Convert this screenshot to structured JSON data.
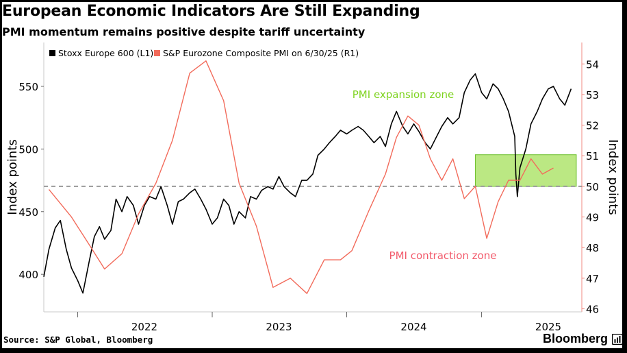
{
  "header": {
    "title": "European Economic Indicators Are Still Expanding",
    "subtitle": "PMI momentum remains positive despite tariff uncertainty"
  },
  "footer": {
    "source": "Source: S&P Global, Bloomberg",
    "brand": "Bloomberg"
  },
  "icons": {
    "brand": "chart-square-icon"
  },
  "chart_data": {
    "type": "line",
    "title": "European Economic Indicators Are Still Expanding",
    "subtitle": "PMI momentum remains positive despite tariff uncertainty",
    "x_tick_labels": [
      "2022",
      "2023",
      "2024",
      "2025"
    ],
    "x_range": [
      "2021-10-01",
      "2025-09-30"
    ],
    "y_left": {
      "label": "Index points",
      "range": [
        370,
        585
      ],
      "ticks": [
        400,
        450,
        500,
        550
      ]
    },
    "y_right": {
      "label": "Index points",
      "range": [
        45.9,
        54.7
      ],
      "ticks": [
        46,
        47,
        48,
        49,
        50,
        51,
        52,
        53,
        54
      ]
    },
    "legend": {
      "position": "top-left"
    },
    "series": [
      {
        "name": "Stoxx Europe 600 (L1)",
        "axis": "left",
        "color": "#000000",
        "x": [
          "2021-10-01",
          "2021-10-15",
          "2021-11-01",
          "2021-11-15",
          "2021-12-01",
          "2021-12-15",
          "2022-01-01",
          "2022-01-15",
          "2022-02-01",
          "2022-02-15",
          "2022-03-01",
          "2022-03-15",
          "2022-04-01",
          "2022-04-15",
          "2022-05-01",
          "2022-05-15",
          "2022-06-01",
          "2022-06-15",
          "2022-07-01",
          "2022-07-15",
          "2022-08-01",
          "2022-08-15",
          "2022-09-01",
          "2022-09-15",
          "2022-10-01",
          "2022-10-15",
          "2022-11-01",
          "2022-11-15",
          "2022-12-01",
          "2022-12-15",
          "2023-01-01",
          "2023-01-15",
          "2023-02-01",
          "2023-02-15",
          "2023-03-01",
          "2023-03-15",
          "2023-04-01",
          "2023-04-15",
          "2023-05-01",
          "2023-05-15",
          "2023-06-01",
          "2023-06-15",
          "2023-07-01",
          "2023-07-15",
          "2023-08-01",
          "2023-08-15",
          "2023-09-01",
          "2023-09-15",
          "2023-10-01",
          "2023-10-15",
          "2023-11-01",
          "2023-11-15",
          "2023-12-01",
          "2023-12-15",
          "2024-01-01",
          "2024-01-15",
          "2024-02-01",
          "2024-02-15",
          "2024-03-01",
          "2024-03-15",
          "2024-04-01",
          "2024-04-15",
          "2024-05-01",
          "2024-05-15",
          "2024-06-01",
          "2024-06-15",
          "2024-07-01",
          "2024-07-15",
          "2024-08-01",
          "2024-08-15",
          "2024-09-01",
          "2024-09-15",
          "2024-10-01",
          "2024-10-15",
          "2024-11-01",
          "2024-11-15",
          "2024-12-01",
          "2024-12-15",
          "2025-01-01",
          "2025-01-15",
          "2025-02-01",
          "2025-02-15",
          "2025-03-01",
          "2025-03-15",
          "2025-04-01",
          "2025-04-04",
          "2025-04-08",
          "2025-04-15",
          "2025-05-01",
          "2025-05-15",
          "2025-06-01",
          "2025-06-15",
          "2025-07-01",
          "2025-07-15",
          "2025-08-01",
          "2025-08-15",
          "2025-09-01"
        ],
        "values": [
          398,
          420,
          437,
          443,
          420,
          405,
          395,
          385,
          410,
          430,
          438,
          428,
          435,
          460,
          450,
          462,
          455,
          440,
          455,
          462,
          460,
          470,
          455,
          440,
          458,
          460,
          465,
          468,
          460,
          452,
          440,
          445,
          460,
          455,
          440,
          450,
          445,
          462,
          460,
          467,
          470,
          468,
          478,
          470,
          465,
          462,
          475,
          475,
          480,
          495,
          500,
          505,
          510,
          515,
          512,
          515,
          518,
          515,
          510,
          505,
          510,
          502,
          520,
          530,
          518,
          512,
          520,
          514,
          505,
          500,
          510,
          518,
          525,
          520,
          525,
          545,
          555,
          560,
          545,
          540,
          552,
          548,
          540,
          530,
          510,
          480,
          462,
          485,
          500,
          520,
          530,
          540,
          548,
          550,
          540,
          535,
          548
        ]
      },
      {
        "name": "S&P Eurozone Composite PMI on 6/30/25 (R1)",
        "axis": "right",
        "color": "#f26b5b",
        "x": [
          "2021-10-15",
          "2021-12-15",
          "2022-02-01",
          "2022-03-15",
          "2022-05-01",
          "2022-06-15",
          "2022-08-01",
          "2022-09-15",
          "2022-11-01",
          "2022-12-15",
          "2023-02-01",
          "2023-03-15",
          "2023-05-01",
          "2023-06-15",
          "2023-08-01",
          "2023-09-15",
          "2023-11-01",
          "2023-12-15",
          "2024-01-15",
          "2024-03-01",
          "2024-04-15",
          "2024-05-15",
          "2024-06-15",
          "2024-07-15",
          "2024-08-15",
          "2024-09-15",
          "2024-10-15",
          "2024-11-15",
          "2024-12-15",
          "2025-01-15",
          "2025-02-15",
          "2025-03-15",
          "2025-04-15",
          "2025-05-15",
          "2025-06-15",
          "2025-07-15"
        ],
        "values": [
          49.9,
          49.0,
          48.1,
          47.3,
          47.8,
          49.1,
          50.1,
          51.5,
          53.7,
          54.1,
          52.8,
          50.1,
          48.7,
          46.7,
          47.0,
          46.5,
          47.6,
          47.6,
          47.9,
          49.2,
          50.4,
          51.6,
          52.3,
          52.0,
          50.9,
          50.2,
          50.9,
          49.6,
          50.0,
          48.3,
          49.5,
          50.2,
          50.2,
          50.9,
          50.4,
          50.6
        ]
      }
    ],
    "reference_line": {
      "axis": "right",
      "value": 50.0,
      "style": "dashed"
    },
    "highlight": {
      "x_range": [
        "2024-12-15",
        "2025-09-15"
      ],
      "y_right_range": [
        50.0,
        50.9
      ],
      "color": "#a4e05a"
    },
    "annotations": [
      {
        "text": "PMI expansion zone",
        "color": "#7fd321"
      },
      {
        "text": "PMI contraction zone",
        "color": "#f25a6b"
      }
    ]
  }
}
